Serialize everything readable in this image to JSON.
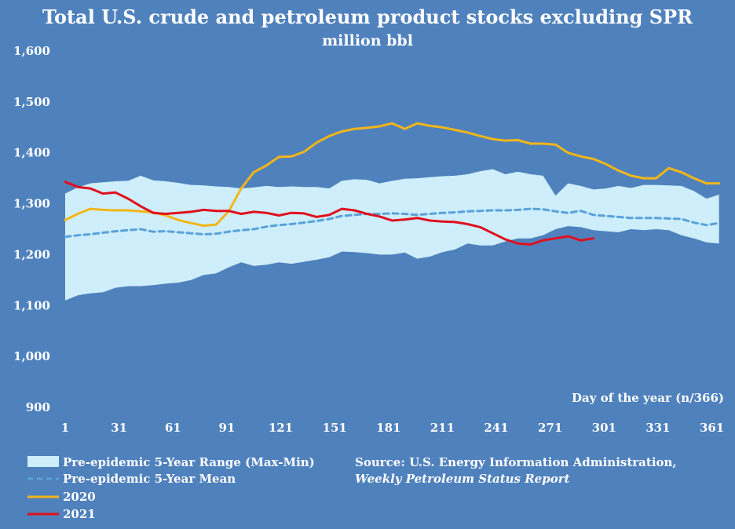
{
  "chart_data": {
    "type": "line",
    "title": "Total U.S. crude and petroleum product stocks excluding SPR",
    "subtitle": "million bbl",
    "xlabel": "Day of the year (n/366)",
    "ylabel": "",
    "xlim": [
      1,
      366
    ],
    "ylim": [
      900,
      1600
    ],
    "y_ticks": [
      900,
      1000,
      1100,
      1200,
      1300,
      1400,
      1500,
      1600
    ],
    "y_tick_labels": [
      "900",
      "1,000",
      "1,100",
      "1,200",
      "1,300",
      "1,400",
      "1,500",
      "1,600"
    ],
    "x_ticks": [
      1,
      31,
      61,
      91,
      121,
      151,
      181,
      211,
      241,
      271,
      301,
      331,
      361
    ],
    "x_tick_labels": [
      "1",
      "31",
      "61",
      "91",
      "121",
      "151",
      "181",
      "211",
      "241",
      "271",
      "301",
      "331",
      "361"
    ],
    "grid": false,
    "legend_position": "bottom-left",
    "colors": {
      "background": "#4f81bd",
      "range_fill": "#cdeefa",
      "mean": "#5aa2da",
      "y2020": "#f2b619",
      "y2021": "#e0101e",
      "text": "#ffffff"
    },
    "range": {
      "name": "Pre-epidemic 5-Year Range (Max-Min)",
      "x": [
        1,
        8,
        15,
        22,
        29,
        36,
        43,
        50,
        57,
        64,
        71,
        78,
        85,
        92,
        99,
        106,
        113,
        120,
        127,
        134,
        141,
        148,
        155,
        162,
        169,
        176,
        183,
        190,
        197,
        204,
        211,
        218,
        225,
        232,
        239,
        246,
        253,
        260,
        267,
        274,
        281,
        288,
        295,
        302,
        309,
        316,
        323,
        330,
        337,
        344,
        351,
        358,
        365
      ],
      "max": [
        1320,
        1332,
        1340,
        1342,
        1344,
        1345,
        1355,
        1346,
        1344,
        1341,
        1337,
        1336,
        1334,
        1333,
        1330,
        1332,
        1335,
        1333,
        1334,
        1333,
        1333,
        1330,
        1345,
        1348,
        1347,
        1340,
        1345,
        1349,
        1350,
        1352,
        1354,
        1355,
        1358,
        1364,
        1368,
        1358,
        1363,
        1358,
        1355,
        1316,
        1340,
        1335,
        1328,
        1330,
        1335,
        1331,
        1337,
        1337,
        1336,
        1335,
        1325,
        1310,
        1318
      ],
      "min": [
        1110,
        1120,
        1124,
        1126,
        1135,
        1138,
        1138,
        1140,
        1143,
        1145,
        1150,
        1160,
        1163,
        1175,
        1185,
        1178,
        1180,
        1185,
        1182,
        1186,
        1190,
        1195,
        1206,
        1205,
        1203,
        1200,
        1200,
        1204,
        1192,
        1196,
        1205,
        1210,
        1222,
        1218,
        1218,
        1226,
        1232,
        1232,
        1238,
        1250,
        1256,
        1254,
        1248,
        1246,
        1244,
        1250,
        1248,
        1250,
        1248,
        1238,
        1232,
        1224,
        1222
      ]
    },
    "series": [
      {
        "name": "Pre-epidemic 5-Year Mean",
        "x": [
          1,
          8,
          15,
          22,
          29,
          36,
          43,
          50,
          57,
          64,
          71,
          78,
          85,
          92,
          99,
          106,
          113,
          120,
          127,
          134,
          141,
          148,
          155,
          162,
          169,
          176,
          183,
          190,
          197,
          204,
          211,
          218,
          225,
          232,
          239,
          246,
          253,
          260,
          267,
          274,
          281,
          288,
          295,
          302,
          309,
          316,
          323,
          330,
          337,
          344,
          351,
          358,
          365
        ],
        "values": [
          1235,
          1238,
          1240,
          1243,
          1246,
          1248,
          1250,
          1245,
          1246,
          1244,
          1242,
          1240,
          1241,
          1245,
          1248,
          1250,
          1255,
          1258,
          1260,
          1263,
          1266,
          1270,
          1276,
          1278,
          1280,
          1280,
          1281,
          1280,
          1278,
          1280,
          1282,
          1283,
          1285,
          1286,
          1287,
          1287,
          1288,
          1290,
          1289,
          1285,
          1282,
          1286,
          1278,
          1276,
          1274,
          1272,
          1272,
          1272,
          1271,
          1270,
          1263,
          1258,
          1262
        ]
      },
      {
        "name": "2020",
        "x": [
          1,
          8,
          15,
          22,
          29,
          36,
          43,
          50,
          57,
          64,
          71,
          78,
          85,
          92,
          99,
          106,
          113,
          120,
          127,
          134,
          141,
          148,
          155,
          162,
          169,
          176,
          183,
          190,
          197,
          204,
          211,
          218,
          225,
          232,
          239,
          246,
          253,
          260,
          267,
          274,
          281,
          288,
          295,
          302,
          309,
          316,
          323,
          330,
          337,
          344,
          351,
          358,
          365
        ],
        "values": [
          1268,
          1280,
          1290,
          1288,
          1287,
          1287,
          1285,
          1283,
          1277,
          1268,
          1262,
          1257,
          1259,
          1285,
          1330,
          1362,
          1375,
          1392,
          1393,
          1402,
          1420,
          1433,
          1442,
          1447,
          1449,
          1452,
          1458,
          1447,
          1458,
          1453,
          1450,
          1445,
          1440,
          1433,
          1427,
          1424,
          1425,
          1418,
          1418,
          1416,
          1400,
          1393,
          1388,
          1378,
          1365,
          1355,
          1350,
          1350,
          1370,
          1362,
          1350,
          1340,
          1340
        ]
      },
      {
        "name": "2021",
        "x": [
          1,
          8,
          15,
          22,
          29,
          36,
          43,
          50,
          57,
          64,
          71,
          78,
          85,
          92,
          99,
          106,
          113,
          120,
          127,
          134,
          141,
          148,
          155,
          162,
          169,
          176,
          183,
          190,
          197,
          204,
          211,
          218,
          225,
          232,
          239,
          246,
          253,
          260,
          267,
          274,
          281,
          288,
          295
        ],
        "values": [
          1343,
          1333,
          1330,
          1320,
          1322,
          1310,
          1295,
          1282,
          1280,
          1282,
          1284,
          1288,
          1286,
          1286,
          1280,
          1284,
          1282,
          1277,
          1282,
          1281,
          1274,
          1278,
          1290,
          1287,
          1280,
          1275,
          1267,
          1269,
          1272,
          1267,
          1265,
          1264,
          1260,
          1254,
          1242,
          1230,
          1222,
          1220,
          1228,
          1232,
          1236,
          1228,
          1232
        ]
      }
    ],
    "source": {
      "line1": "Source: U.S. Energy Information Administration,",
      "line2": "Weekly Petroleum Status Report"
    }
  }
}
